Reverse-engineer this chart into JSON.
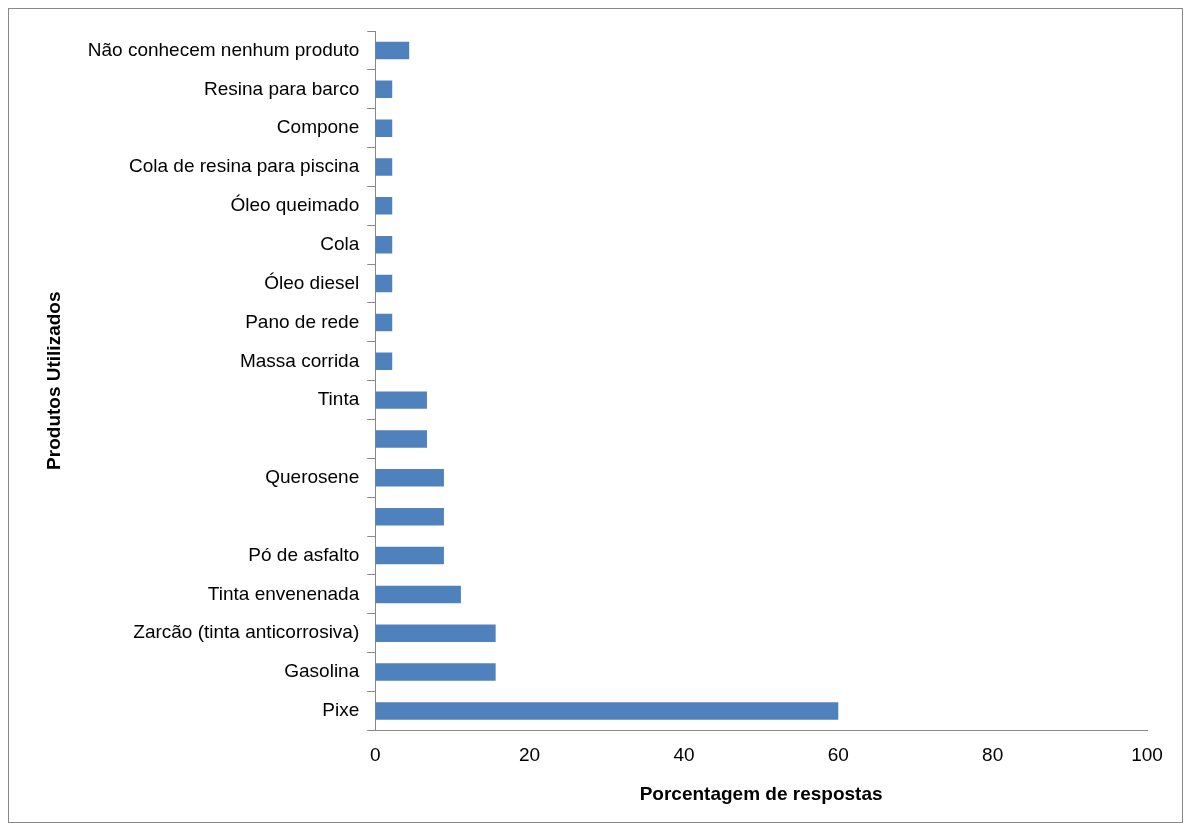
{
  "chart_data": {
    "type": "bar",
    "orientation": "horizontal",
    "xlabel": "Porcentagem de respostas",
    "ylabel": "Produtos Utilizados",
    "categories": [
      "Não conhecem nenhum produto",
      "Resina para barco",
      "Compone",
      "Cola de resina para piscina",
      "Óleo queimado",
      "Cola",
      "Óleo diesel",
      "Pano de rede",
      "Massa corrida",
      "Tinta",
      null,
      "Querosene",
      null,
      "Pó de asfalto",
      "Tinta envenenada",
      "Zarcão (tinta anticorrosiva)",
      "Gasolina",
      "Pixe"
    ],
    "values": [
      4.4,
      2.2,
      2.2,
      2.2,
      2.2,
      2.2,
      2.2,
      2.2,
      2.2,
      6.7,
      6.7,
      8.9,
      8.9,
      8.9,
      11.1,
      15.6,
      15.6,
      60
    ],
    "color": "#4f81bd",
    "xlim": [
      0,
      100
    ],
    "xticks": [
      0,
      20,
      40,
      60,
      80,
      100
    ],
    "grid": false,
    "legend": false
  }
}
